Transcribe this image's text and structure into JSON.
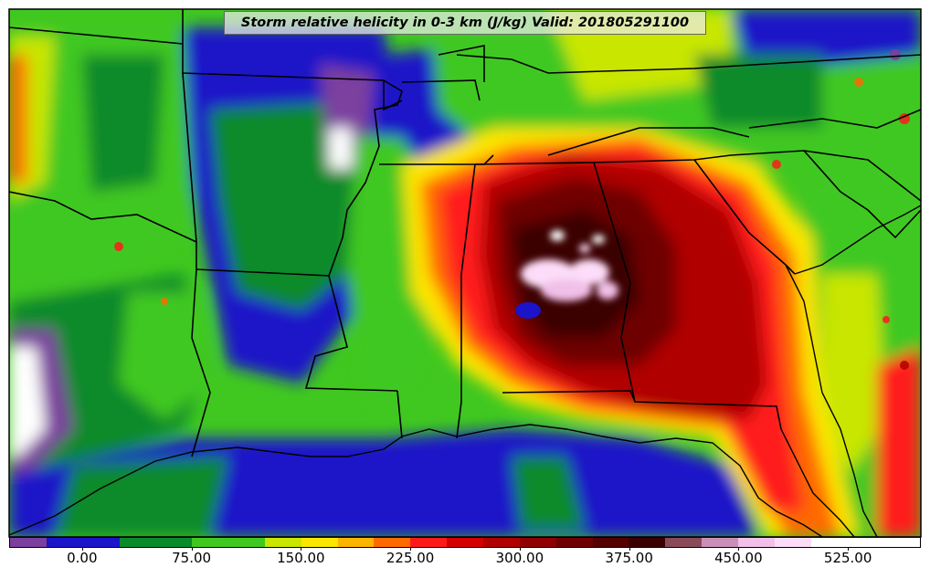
{
  "title": "Storm relative helicity in 0-3 km (J/kg) Valid: 201805291100",
  "palette": [
    "#7b3f9e",
    "#1b14c8",
    "#1b14c8",
    "#0a8a2a",
    "#0a8a2a",
    "#40c820",
    "#40c820",
    "#c8e600",
    "#fce600",
    "#fcb400",
    "#ff6a00",
    "#ff1a1a",
    "#d40000",
    "#b00000",
    "#900000",
    "#6e0000",
    "#540000",
    "#3a0000",
    "#8a4a5a",
    "#c890b8",
    "#f0c0e8",
    "#fcdcf8",
    "#ffffff",
    "#ffffff",
    "#ffffff"
  ],
  "colorbar": {
    "ticks": [
      "0.00",
      "75.00",
      "150.00",
      "225.00",
      "300.00",
      "375.00",
      "450.00",
      "525.00"
    ],
    "tick_values": [
      0,
      75,
      150,
      225,
      300,
      375,
      450,
      525
    ],
    "min": -50,
    "max": 575
  }
}
